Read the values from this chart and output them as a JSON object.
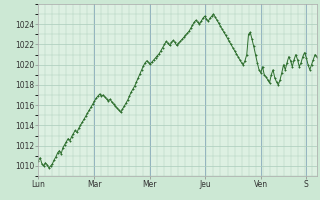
{
  "bg_color": "#cce8d4",
  "plot_bg_color": "#ddf0e2",
  "grid_color": "#aaccbb",
  "line_color": "#2d6e2d",
  "marker_color": "#2d6e2d",
  "ylim": [
    1009,
    1026
  ],
  "yticks": [
    1010,
    1012,
    1014,
    1016,
    1018,
    1020,
    1022,
    1024
  ],
  "xtick_labels": [
    "Lun",
    "Mar",
    "Mer",
    "Jeu",
    "Ven",
    "S"
  ],
  "xtick_positions_norm": [
    0.0,
    0.2,
    0.4,
    0.6,
    0.8,
    0.96
  ],
  "y_values": [
    1010.5,
    1010.8,
    1010.2,
    1010.0,
    1010.3,
    1010.1,
    1009.8,
    1010.0,
    1010.2,
    1010.6,
    1010.9,
    1011.3,
    1011.5,
    1011.2,
    1011.8,
    1012.1,
    1012.4,
    1012.7,
    1012.5,
    1012.9,
    1013.2,
    1013.5,
    1013.3,
    1013.7,
    1014.0,
    1014.3,
    1014.6,
    1014.9,
    1015.2,
    1015.5,
    1015.8,
    1016.1,
    1016.4,
    1016.7,
    1016.9,
    1017.1,
    1016.9,
    1017.0,
    1016.8,
    1016.6,
    1016.4,
    1016.6,
    1016.3,
    1016.1,
    1015.9,
    1015.7,
    1015.5,
    1015.3,
    1015.6,
    1015.9,
    1016.2,
    1016.5,
    1016.9,
    1017.3,
    1017.6,
    1017.9,
    1018.3,
    1018.7,
    1019.1,
    1019.5,
    1019.9,
    1020.2,
    1020.4,
    1020.2,
    1020.1,
    1020.3,
    1020.5,
    1020.7,
    1020.9,
    1021.1,
    1021.4,
    1021.7,
    1022.0,
    1022.3,
    1022.1,
    1021.9,
    1022.2,
    1022.4,
    1022.2,
    1021.9,
    1022.1,
    1022.3,
    1022.5,
    1022.7,
    1022.9,
    1023.1,
    1023.3,
    1023.6,
    1023.9,
    1024.2,
    1024.4,
    1024.2,
    1024.0,
    1024.3,
    1024.6,
    1024.8,
    1024.5,
    1024.3,
    1024.6,
    1024.8,
    1025.0,
    1024.7,
    1024.4,
    1024.1,
    1023.8,
    1023.5,
    1023.2,
    1022.9,
    1022.6,
    1022.3,
    1022.0,
    1021.7,
    1021.4,
    1021.1,
    1020.8,
    1020.5,
    1020.2,
    1020.0,
    1020.4,
    1021.0,
    1023.0,
    1023.2,
    1022.5,
    1021.8,
    1021.0,
    1020.2,
    1019.5,
    1019.2,
    1019.8,
    1019.0,
    1018.8,
    1018.5,
    1018.2,
    1019.0,
    1019.5,
    1018.7,
    1018.3,
    1018.0,
    1018.5,
    1019.2,
    1020.0,
    1019.5,
    1020.2,
    1020.8,
    1020.4,
    1019.8,
    1020.5,
    1021.0,
    1020.5,
    1019.8,
    1020.2,
    1020.8,
    1021.2,
    1020.7,
    1020.0,
    1019.5,
    1020.0,
    1020.5,
    1021.0,
    1020.8
  ]
}
